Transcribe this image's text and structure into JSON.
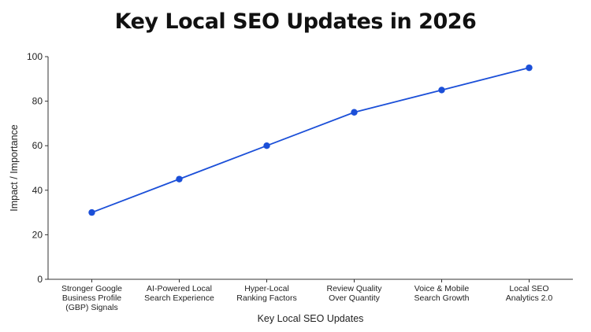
{
  "chart_data": {
    "type": "line",
    "title": "Key Local SEO Updates in 2026",
    "xlabel": "Key Local SEO Updates",
    "ylabel": "Impact / Importance",
    "categories": [
      [
        "Stronger Google",
        "Business Profile",
        "(GBP) Signals"
      ],
      [
        "AI-Powered Local",
        "Search Experience"
      ],
      [
        "Hyper-Local",
        "Ranking Factors"
      ],
      [
        "Review Quality",
        "Over Quantity"
      ],
      [
        "Voice & Mobile",
        "Search Growth"
      ],
      [
        "Local SEO",
        "Analytics 2.0"
      ]
    ],
    "series": [
      {
        "values": [
          30,
          45,
          60,
          75,
          85,
          95
        ],
        "color": "#1b4fd8"
      }
    ],
    "ylim": [
      0,
      100
    ],
    "yticks": [
      0,
      20,
      40,
      60,
      80,
      100
    ],
    "grid": false,
    "legend": "none"
  }
}
